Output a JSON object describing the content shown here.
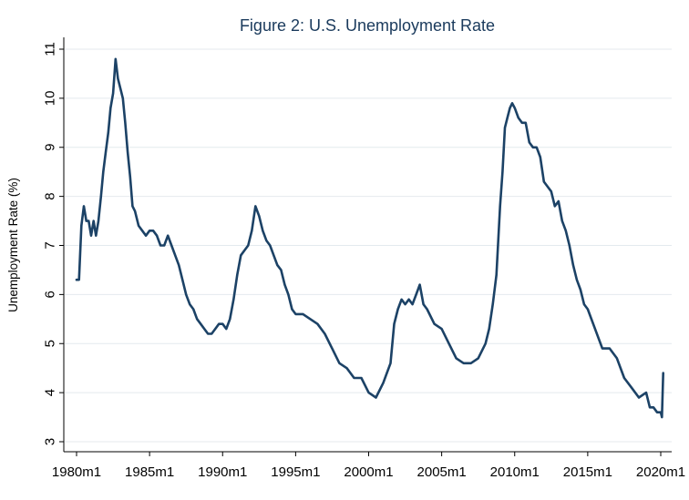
{
  "chart_data": {
    "type": "line",
    "title": "Figure 2: U.S. Unemployment Rate",
    "xlabel": "",
    "ylabel": "Unemployment Rate (%)",
    "ylim": [
      3,
      11
    ],
    "xlim": [
      1980,
      2020.25
    ],
    "grid": true,
    "line_color": "#1c4266",
    "grid_color": "#e4eaee",
    "y_ticks": [
      {
        "value": 3,
        "label": "3"
      },
      {
        "value": 4,
        "label": "4"
      },
      {
        "value": 5,
        "label": "5"
      },
      {
        "value": 6,
        "label": "6"
      },
      {
        "value": 7,
        "label": "7"
      },
      {
        "value": 8,
        "label": "8"
      },
      {
        "value": 9,
        "label": "9"
      },
      {
        "value": 10,
        "label": "10"
      },
      {
        "value": 11,
        "label": "11"
      }
    ],
    "x_ticks": [
      {
        "value": 1980,
        "label": "1980m1"
      },
      {
        "value": 1985,
        "label": "1985m1"
      },
      {
        "value": 1990,
        "label": "1990m1"
      },
      {
        "value": 1995,
        "label": "1995m1"
      },
      {
        "value": 2000,
        "label": "2000m1"
      },
      {
        "value": 2005,
        "label": "2005m1"
      },
      {
        "value": 2010,
        "label": "2010m1"
      },
      {
        "value": 2015,
        "label": "2015m1"
      },
      {
        "value": 2020,
        "label": "2020m1"
      }
    ],
    "series": [
      {
        "name": "Unemployment Rate",
        "x": [
          1980.0,
          1980.17,
          1980.33,
          1980.5,
          1980.67,
          1980.83,
          1981.0,
          1981.17,
          1981.33,
          1981.5,
          1981.67,
          1981.83,
          1982.0,
          1982.17,
          1982.33,
          1982.5,
          1982.67,
          1982.83,
          1983.0,
          1983.17,
          1983.33,
          1983.5,
          1983.67,
          1983.83,
          1984.0,
          1984.25,
          1984.5,
          1984.75,
          1985.0,
          1985.25,
          1985.5,
          1985.75,
          1986.0,
          1986.25,
          1986.5,
          1986.75,
          1987.0,
          1987.25,
          1987.5,
          1987.75,
          1988.0,
          1988.25,
          1988.5,
          1988.75,
          1989.0,
          1989.25,
          1989.5,
          1989.75,
          1990.0,
          1990.25,
          1990.5,
          1990.75,
          1991.0,
          1991.25,
          1991.5,
          1991.75,
          1992.0,
          1992.25,
          1992.5,
          1992.75,
          1993.0,
          1993.25,
          1993.5,
          1993.75,
          1994.0,
          1994.25,
          1994.5,
          1994.75,
          1995.0,
          1995.5,
          1996.0,
          1996.5,
          1997.0,
          1997.5,
          1998.0,
          1998.5,
          1999.0,
          1999.5,
          2000.0,
          2000.5,
          2001.0,
          2001.25,
          2001.5,
          2001.75,
          2002.0,
          2002.25,
          2002.5,
          2002.75,
          2003.0,
          2003.25,
          2003.5,
          2003.75,
          2004.0,
          2004.5,
          2005.0,
          2005.5,
          2006.0,
          2006.5,
          2007.0,
          2007.5,
          2008.0,
          2008.25,
          2008.5,
          2008.75,
          2009.0,
          2009.17,
          2009.33,
          2009.5,
          2009.67,
          2009.83,
          2010.0,
          2010.25,
          2010.5,
          2010.75,
          2011.0,
          2011.25,
          2011.5,
          2011.75,
          2012.0,
          2012.25,
          2012.5,
          2012.75,
          2013.0,
          2013.25,
          2013.5,
          2013.75,
          2014.0,
          2014.25,
          2014.5,
          2014.75,
          2015.0,
          2015.5,
          2016.0,
          2016.5,
          2017.0,
          2017.5,
          2018.0,
          2018.5,
          2019.0,
          2019.25,
          2019.5,
          2019.75,
          2020.0,
          2020.08,
          2020.17
        ],
        "values": [
          6.3,
          6.3,
          7.4,
          7.8,
          7.5,
          7.5,
          7.2,
          7.5,
          7.2,
          7.5,
          8.0,
          8.5,
          8.9,
          9.3,
          9.8,
          10.1,
          10.8,
          10.4,
          10.2,
          10.0,
          9.5,
          8.9,
          8.4,
          7.8,
          7.7,
          7.4,
          7.3,
          7.2,
          7.3,
          7.3,
          7.2,
          7.0,
          7.0,
          7.2,
          7.0,
          6.8,
          6.6,
          6.3,
          6.0,
          5.8,
          5.7,
          5.5,
          5.4,
          5.3,
          5.2,
          5.2,
          5.3,
          5.4,
          5.4,
          5.3,
          5.5,
          5.9,
          6.4,
          6.8,
          6.9,
          7.0,
          7.3,
          7.8,
          7.6,
          7.3,
          7.1,
          7.0,
          6.8,
          6.6,
          6.5,
          6.2,
          6.0,
          5.7,
          5.6,
          5.6,
          5.5,
          5.4,
          5.2,
          4.9,
          4.6,
          4.5,
          4.3,
          4.3,
          4.0,
          3.9,
          4.2,
          4.4,
          4.6,
          5.4,
          5.7,
          5.9,
          5.8,
          5.9,
          5.8,
          6.0,
          6.2,
          5.8,
          5.7,
          5.4,
          5.3,
          5.0,
          4.7,
          4.6,
          4.6,
          4.7,
          5.0,
          5.3,
          5.8,
          6.4,
          7.8,
          8.5,
          9.4,
          9.6,
          9.8,
          9.9,
          9.8,
          9.6,
          9.5,
          9.5,
          9.1,
          9.0,
          9.0,
          8.8,
          8.3,
          8.2,
          8.1,
          7.8,
          7.9,
          7.5,
          7.3,
          7.0,
          6.6,
          6.3,
          6.1,
          5.8,
          5.7,
          5.3,
          4.9,
          4.9,
          4.7,
          4.3,
          4.1,
          3.9,
          4.0,
          3.7,
          3.7,
          3.6,
          3.6,
          3.5,
          4.4
        ]
      }
    ]
  }
}
